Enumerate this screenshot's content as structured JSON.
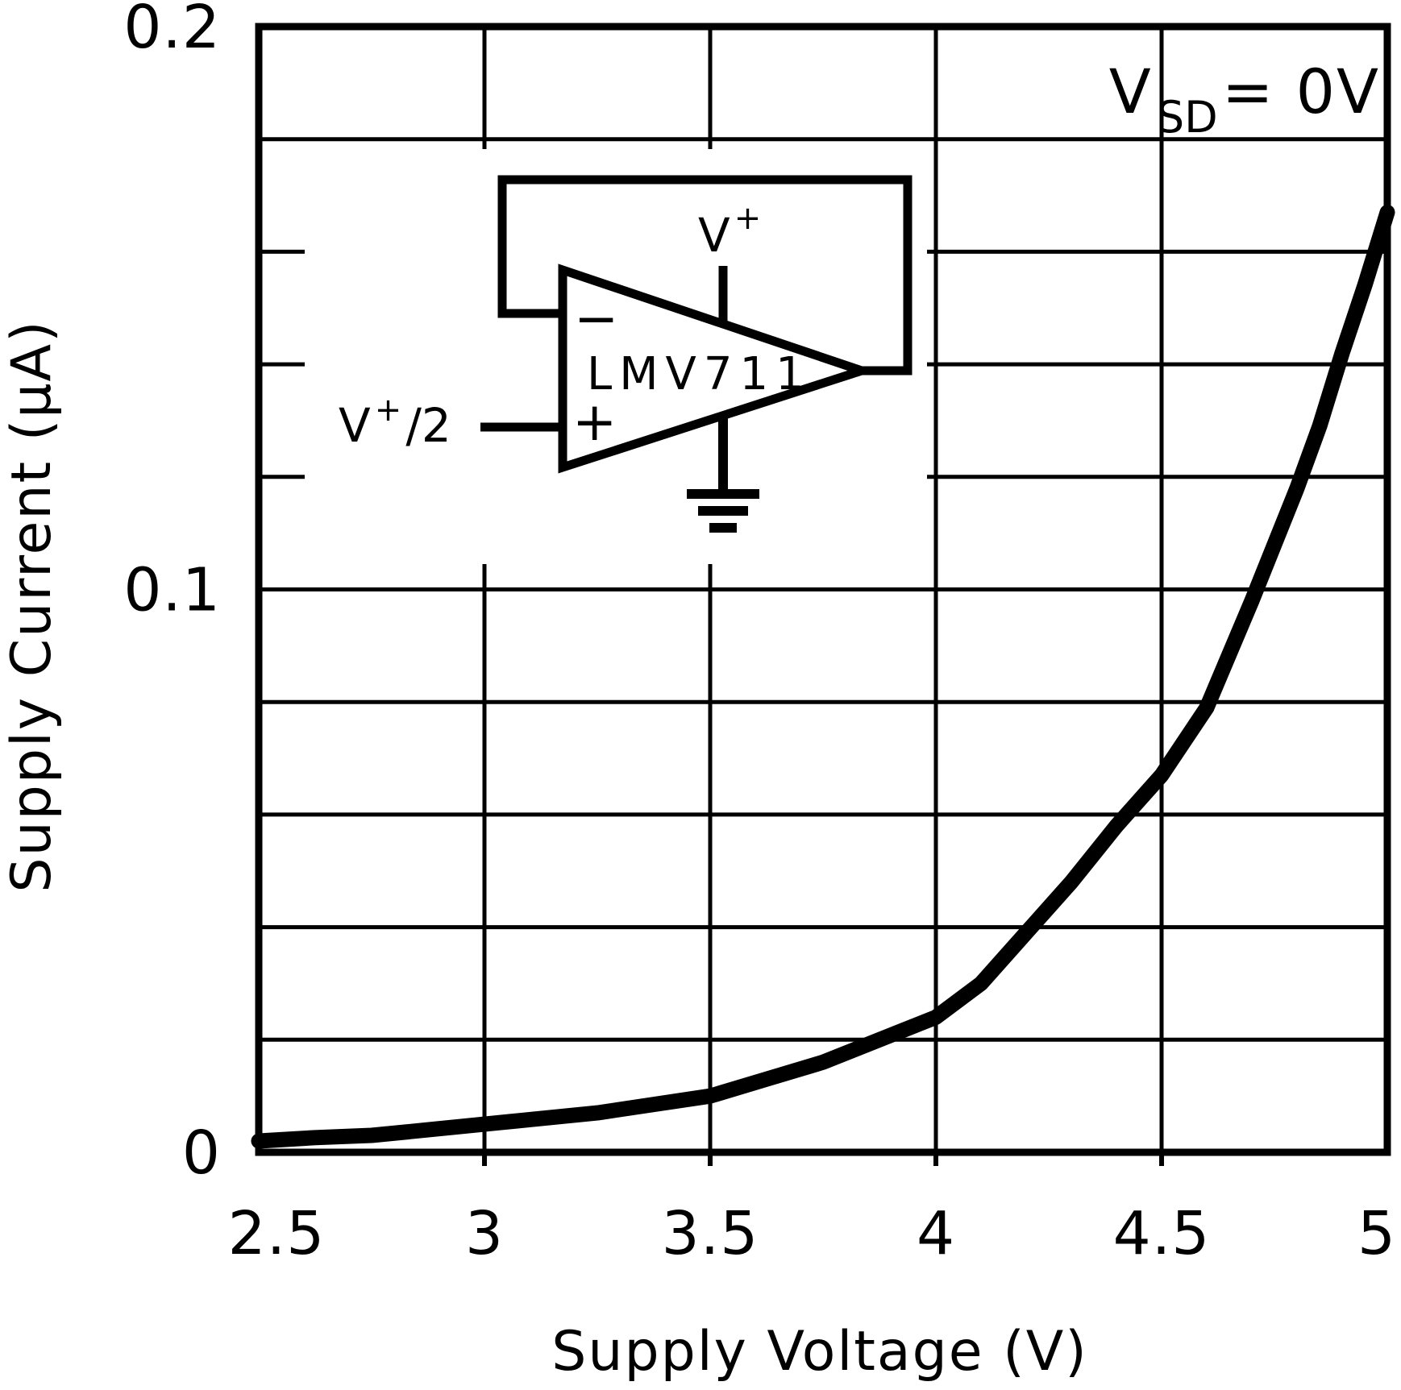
{
  "page": {
    "background": "#ffffff"
  },
  "colors": {
    "ink": "#000000",
    "grid": "#000000",
    "curve": "#000000"
  },
  "chart_data": {
    "type": "line",
    "title": "",
    "xlabel": "Supply Voltage (V)",
    "ylabel": "Supply Current (μA)",
    "xlim": [
      2.5,
      5
    ],
    "ylim": [
      0,
      0.2
    ],
    "x_ticks": {
      "values": [
        2.5,
        3,
        3.5,
        4,
        4.5,
        5
      ],
      "labels": [
        "2.5",
        "3",
        "3.5",
        "4",
        "4.5",
        "5"
      ]
    },
    "y_ticks": {
      "values": [
        0,
        0.1,
        0.2
      ],
      "labels": [
        "0",
        "0.1",
        "0.2"
      ]
    },
    "grid": {
      "x_step": 0.5,
      "y_step": 0.02,
      "visible": true
    },
    "legend": {
      "visible": false
    },
    "annotation": {
      "base": "V",
      "subscript": "SD",
      "equals": " = 0V",
      "text": "VSD = 0V"
    },
    "series": [
      {
        "name": "supply-current-vs-supply-voltage",
        "x": [
          2.5,
          2.625,
          2.75,
          2.875,
          3.0,
          3.125,
          3.25,
          3.375,
          3.5,
          3.625,
          3.75,
          3.875,
          4.0,
          4.1,
          4.2,
          4.3,
          4.4,
          4.5,
          4.6,
          4.7,
          4.8,
          4.85,
          4.9,
          4.95,
          5.0
        ],
        "y": [
          0.002,
          0.0026,
          0.003,
          0.004,
          0.005,
          0.006,
          0.007,
          0.0085,
          0.01,
          0.013,
          0.016,
          0.02,
          0.024,
          0.03,
          0.039,
          0.048,
          0.058,
          0.067,
          0.079,
          0.098,
          0.118,
          0.129,
          0.142,
          0.154,
          0.167
        ]
      }
    ]
  },
  "inset_circuit": {
    "part_label": "LMV711",
    "inverting_input_label": "−",
    "noninverting_input_label": "+",
    "supply_label": {
      "base": "V",
      "superscript": "+"
    },
    "input_label": {
      "base": "V",
      "superscript": "+",
      "suffix": "/2"
    }
  }
}
